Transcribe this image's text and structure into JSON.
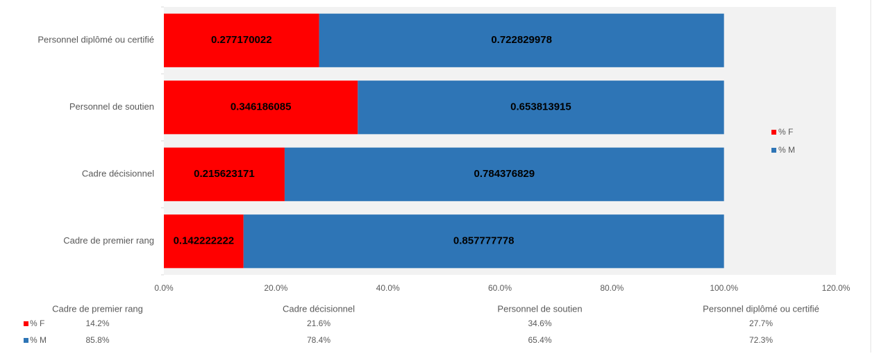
{
  "chart_data": {
    "type": "stacked_barh",
    "categories": [
      "Cadre de premier rang",
      "Cadre décisionnel",
      "Personnel de soutien",
      "Personnel diplômé ou certifié"
    ],
    "series": [
      {
        "name": "% F",
        "color": "#ff0000",
        "values": [
          0.142222222,
          0.215623171,
          0.346186085,
          0.277170022
        ],
        "value_labels": [
          "14.2%",
          "21.6%",
          "34.6%",
          "27.7%"
        ]
      },
      {
        "name": "% M",
        "color": "#2e75b6",
        "values": [
          0.857777778,
          0.784376829,
          0.653813915,
          0.722829978
        ],
        "value_labels": [
          "85.8%",
          "78.4%",
          "65.4%",
          "72.3%"
        ]
      }
    ],
    "xlim": [
      0,
      1.2
    ],
    "xticks": [
      {
        "value": 0,
        "label": "0.0%"
      },
      {
        "value": 0.2,
        "label": "20.0%"
      },
      {
        "value": 0.4,
        "label": "40.0%"
      },
      {
        "value": 0.6,
        "label": "60.0%"
      },
      {
        "value": 0.8,
        "label": "80.0%"
      },
      {
        "value": 1.0,
        "label": "100.0%"
      },
      {
        "value": 1.2,
        "label": "120.0%"
      }
    ],
    "legend": "right",
    "data_table": true
  }
}
